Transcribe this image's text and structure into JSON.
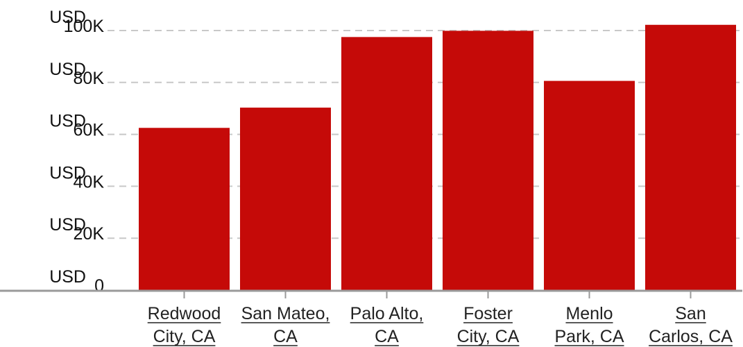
{
  "chart_data": {
    "type": "bar",
    "categories": [
      [
        "Redwood",
        "City, CA"
      ],
      [
        "San Mateo,",
        "CA"
      ],
      [
        "Palo Alto,",
        "CA"
      ],
      [
        "Foster",
        "City, CA"
      ],
      [
        "Menlo",
        "Park, CA"
      ],
      [
        "San",
        "Carlos, CA"
      ]
    ],
    "values": [
      62500,
      70300,
      97500,
      99900,
      80600,
      102200
    ],
    "ylim": [
      0,
      100000
    ],
    "yticks": [
      {
        "value": 0,
        "prefix": "USD",
        "label": "0"
      },
      {
        "value": 20000,
        "prefix": "USD",
        "label": "20K"
      },
      {
        "value": 40000,
        "prefix": "USD",
        "label": "40K"
      },
      {
        "value": 60000,
        "prefix": "USD",
        "label": "60K"
      },
      {
        "value": 80000,
        "prefix": "USD",
        "label": "80K"
      },
      {
        "value": 100000,
        "prefix": "USD",
        "label": "100K"
      }
    ],
    "grid": true,
    "bar_color": "#c50a08",
    "grid_color": "#c8c8c8",
    "axis_color": "#9a9a9a"
  }
}
